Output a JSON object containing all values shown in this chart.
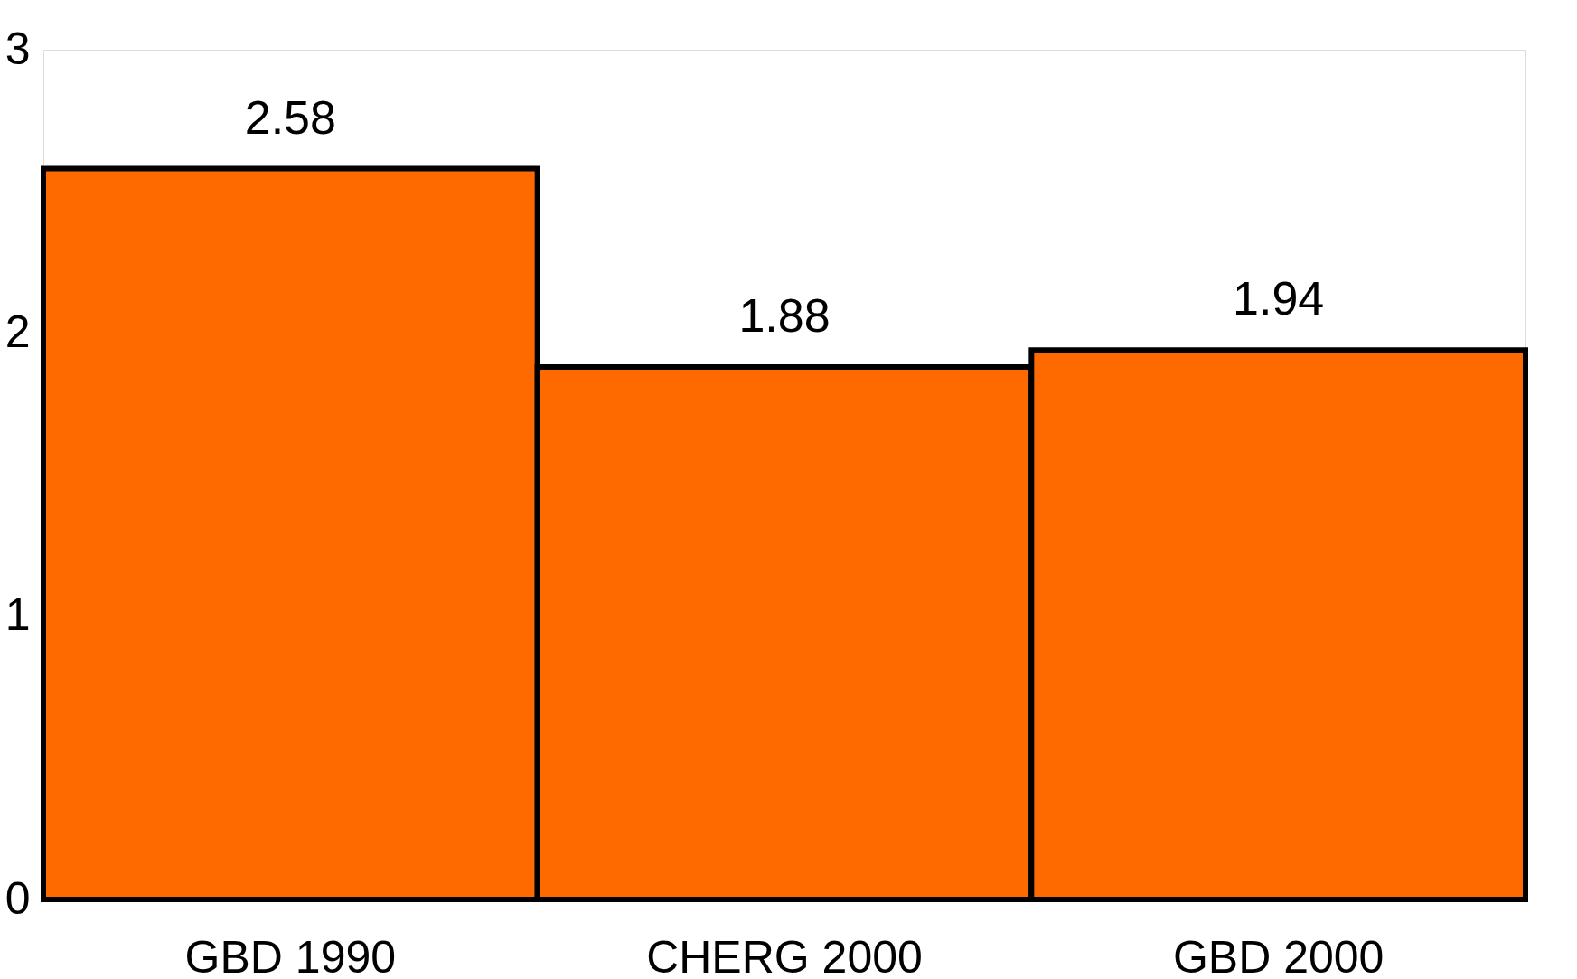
{
  "chart_data": {
    "type": "bar",
    "categories": [
      "GBD 1990",
      "CHERG 2000",
      "GBD 2000"
    ],
    "values": [
      2.58,
      1.88,
      1.94
    ],
    "color": "#ff6a00",
    "ylim": [
      0,
      3
    ],
    "yticks": [
      0,
      1,
      2,
      3
    ],
    "grid": false,
    "data_labels": true
  }
}
